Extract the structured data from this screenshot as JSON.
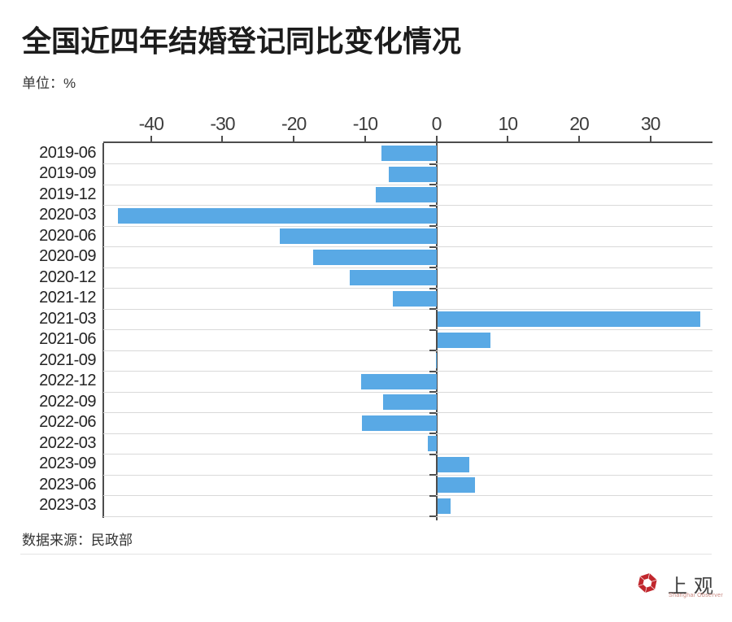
{
  "title": "全国近四年结婚登记同比变化情况",
  "unit_label": "单位：%",
  "source_label": "数据来源：民政部",
  "logo": {
    "cn": "上观",
    "en": "Shanghai Observer"
  },
  "colors": {
    "bar": "#59a9e5",
    "axis": "#4d4d4d",
    "grid": "#d9d9d9",
    "logo_red": "#c1272d",
    "logo_en_red": "#c8867e"
  },
  "chart_data": {
    "type": "bar",
    "orientation": "horizontal",
    "title": "全国近四年结婚登记同比变化情况",
    "unit": "%",
    "xlabel": "",
    "ylabel": "",
    "grid": "horizontal",
    "xlim": [
      -46.7,
      38.7
    ],
    "x_ticks": [
      -40,
      -30,
      -20,
      -10,
      0,
      10,
      20,
      30
    ],
    "categories": [
      "2019-06",
      "2019-09",
      "2019-12",
      "2020-03",
      "2020-06",
      "2020-09",
      "2020-12",
      "2021-12",
      "2021-03",
      "2021-06",
      "2021-09",
      "2022-12",
      "2022-09",
      "2022-06",
      "2022-03",
      "2023-09",
      "2023-06",
      "2023-03"
    ],
    "values": [
      -7.7,
      -6.7,
      -8.5,
      -44.7,
      -22.0,
      -17.3,
      -12.2,
      -6.1,
      36.9,
      7.5,
      -0.1,
      -10.5,
      -7.5,
      -10.4,
      -1.2,
      4.5,
      5.3,
      1.9
    ]
  }
}
